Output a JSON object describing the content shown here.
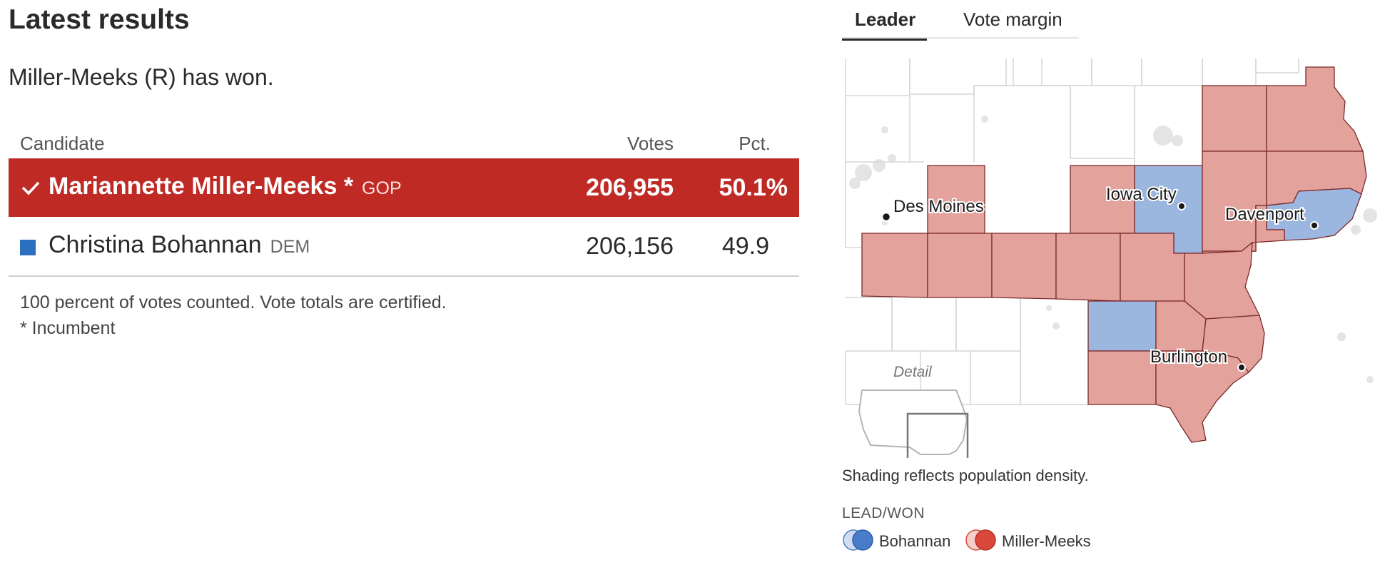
{
  "results": {
    "title": "Latest results",
    "status": "Miller-Meeks (R) has won.",
    "headers": {
      "candidate": "Candidate",
      "votes": "Votes",
      "pct": "Pct."
    },
    "candidates": [
      {
        "name": "Mariannette Miller-Meeks",
        "incumbent_mark": "*",
        "party": "GOP",
        "votes": "206,955",
        "pct": "50.1%",
        "winner": true
      },
      {
        "name": "Christina Bohannan",
        "incumbent_mark": "",
        "party": "DEM",
        "votes": "206,156",
        "pct": "49.9",
        "winner": false
      }
    ],
    "notes": [
      "100 percent of votes counted. Vote totals are certified.",
      "* Incumbent"
    ]
  },
  "map": {
    "tabs": [
      "Leader",
      "Vote margin"
    ],
    "active_tab": "Leader",
    "cities": [
      "Des Moines",
      "Iowa City",
      "Davenport",
      "Burlington"
    ],
    "detail_label": "Detail",
    "caption": "Shading reflects population density.",
    "legend_title": "LEAD/WON",
    "legend": [
      {
        "name": "Bohannan",
        "color": "#4a7dc9"
      },
      {
        "name": "Miller-Meeks",
        "color": "#d9483b"
      }
    ],
    "colors": {
      "rep": "#e4a29c",
      "dem": "#9bb6df",
      "winner_row": "#bf2a25"
    }
  }
}
